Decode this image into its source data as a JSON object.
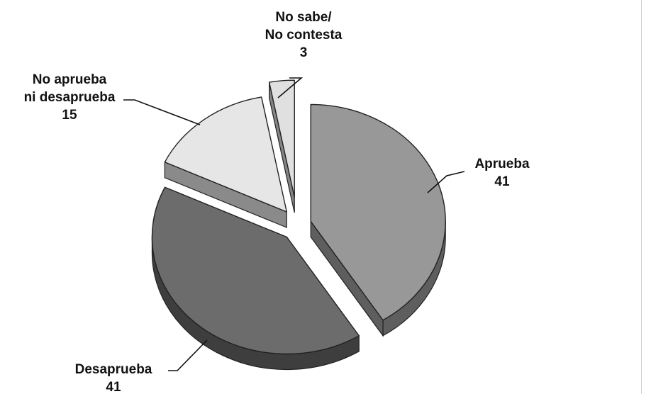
{
  "chart_data": {
    "type": "pie",
    "style": "3d-exploded",
    "slices": [
      {
        "label_lines": [
          "Aprueba"
        ],
        "value": 41,
        "value_text": "41",
        "color": "#989898",
        "side_color": "#5e5e5e"
      },
      {
        "label_lines": [
          "Desaprueba"
        ],
        "value": 41,
        "value_text": "41",
        "color": "#6c6c6c",
        "side_color": "#3e3e3e"
      },
      {
        "label_lines": [
          "No aprueba",
          "ni desaprueba"
        ],
        "value": 15,
        "value_text": "15",
        "color": "#e6e6e6",
        "side_color": "#8a8a8a"
      },
      {
        "label_lines": [
          "No sabe/",
          "No contesta"
        ],
        "value": 3,
        "value_text": "3",
        "color": "#e0e0e0",
        "side_color": "#858585"
      }
    ]
  }
}
